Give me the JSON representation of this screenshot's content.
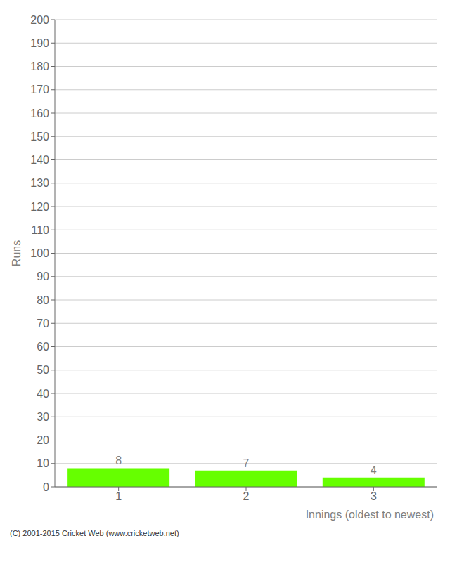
{
  "chart_data": {
    "type": "bar",
    "categories": [
      "1",
      "2",
      "3"
    ],
    "values": [
      8,
      7,
      4
    ],
    "color": "#66ff00",
    "xlabel": "Innings (oldest to newest)",
    "ylabel": "Runs",
    "ylim": [
      0,
      200
    ],
    "yticks": [
      0,
      10,
      20,
      30,
      40,
      50,
      60,
      70,
      80,
      90,
      100,
      110,
      120,
      130,
      140,
      150,
      160,
      170,
      180,
      190,
      200
    ],
    "grid": true,
    "data_labels": true,
    "annotations": [
      "(C) 2001-2015 Cricket Web (www.cricketweb.net)"
    ]
  }
}
